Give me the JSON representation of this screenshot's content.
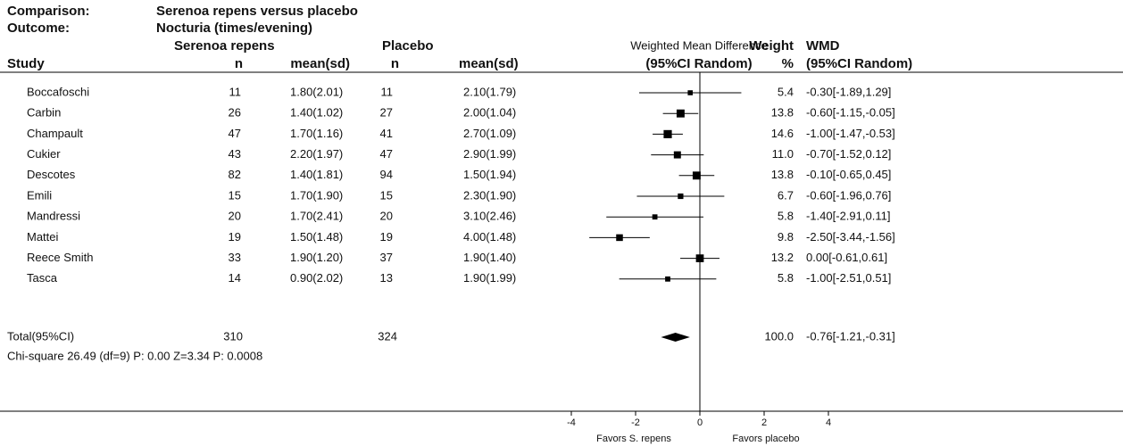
{
  "chart_data": {
    "type": "forest",
    "comparison_label": "Comparison:",
    "comparison": "Serenoa repens versus placebo",
    "outcome_label": "Outcome:",
    "outcome": "Nocturia (times/evening)",
    "group_1": "Serenoa repens",
    "group_2": "Placebo",
    "plot_header": "Weighted Mean Difference",
    "plot_subheader": "(95%CI Random)",
    "weight_header": "Weight",
    "weight_unit": "%",
    "wmd_header": "WMD",
    "wmd_subheader": "(95%CI Random)",
    "study_header": "Study",
    "n_header_1": "n",
    "mean_header_1": "mean(sd)",
    "n_header_2": "n",
    "mean_header_2": "mean(sd)",
    "studies": [
      {
        "name": "Boccafoschi",
        "n1": 11,
        "mean1": "1.80(2.01)",
        "n2": 11,
        "mean2": "2.10(1.79)",
        "weight": 5.4,
        "wmd": -0.3,
        "ci_low": -1.89,
        "ci_high": 1.29,
        "wmd_label": "-0.30[-1.89,1.29]"
      },
      {
        "name": "Carbin",
        "n1": 26,
        "mean1": "1.40(1.02)",
        "n2": 27,
        "mean2": "2.00(1.04)",
        "weight": 13.8,
        "wmd": -0.6,
        "ci_low": -1.15,
        "ci_high": -0.05,
        "wmd_label": "-0.60[-1.15,-0.05]"
      },
      {
        "name": "Champault",
        "n1": 47,
        "mean1": "1.70(1.16)",
        "n2": 41,
        "mean2": "2.70(1.09)",
        "weight": 14.6,
        "wmd": -1.0,
        "ci_low": -1.47,
        "ci_high": -0.53,
        "wmd_label": "-1.00[-1.47,-0.53]"
      },
      {
        "name": "Cukier",
        "n1": 43,
        "mean1": "2.20(1.97)",
        "n2": 47,
        "mean2": "2.90(1.99)",
        "weight": 11,
        "wmd": -0.7,
        "ci_low": -1.52,
        "ci_high": 0.12,
        "wmd_label": "-0.70[-1.52,0.12]",
        "weight_label": "11.0"
      },
      {
        "name": "Descotes",
        "n1": 82,
        "mean1": "1.40(1.81)",
        "n2": 94,
        "mean2": "1.50(1.94)",
        "weight": 13.8,
        "wmd": -0.1,
        "ci_low": -0.65,
        "ci_high": 0.45,
        "wmd_label": "-0.10[-0.65,0.45]"
      },
      {
        "name": "Emili",
        "n1": 15,
        "mean1": "1.70(1.90)",
        "n2": 15,
        "mean2": "2.30(1.90)",
        "weight": 6.7,
        "wmd": -0.6,
        "ci_low": -1.96,
        "ci_high": 0.76,
        "wmd_label": "-0.60[-1.96,0.76]"
      },
      {
        "name": "Mandressi",
        "n1": 20,
        "mean1": "1.70(2.41)",
        "n2": 20,
        "mean2": "3.10(2.46)",
        "weight": 5.8,
        "wmd": -1.4,
        "ci_low": -2.91,
        "ci_high": 0.11,
        "wmd_label": "-1.40[-2.91,0.11]"
      },
      {
        "name": "Mattei",
        "n1": 19,
        "mean1": "1.50(1.48)",
        "n2": 19,
        "mean2": "4.00(1.48)",
        "weight": 9.8,
        "wmd": -2.5,
        "ci_low": -3.44,
        "ci_high": -1.56,
        "wmd_label": "-2.50[-3.44,-1.56]"
      },
      {
        "name": "Reece Smith",
        "n1": 33,
        "mean1": "1.90(1.20)",
        "n2": 37,
        "mean2": "1.90(1.40)",
        "weight": 13.2,
        "wmd": 0,
        "ci_low": -0.61,
        "ci_high": 0.61,
        "wmd_label": "0.00[-0.61,0.61]"
      },
      {
        "name": "Tasca",
        "n1": 14,
        "mean1": "0.90(2.02)",
        "n2": 13,
        "mean2": "1.90(1.99)",
        "weight": 5.8,
        "wmd": -1.0,
        "ci_low": -2.51,
        "ci_high": 0.51,
        "wmd_label": "-1.00[-2.51,0.51]"
      }
    ],
    "total": {
      "name": "Total(95%CI)",
      "n1": 310,
      "n2": 324,
      "weight": {
        "value": 100,
        "label": "100.0"
      },
      "wmd": -0.76,
      "ci_low": -1.21,
      "ci_high": -0.31,
      "wmd_label": "-0.76[-1.21,-0.31]"
    },
    "heterogeneity": "Chi-square 26.49 (df=9) P: 0.00  Z=3.34 P: 0.0008",
    "xlim": [
      -4,
      4
    ],
    "xticks": [
      -4,
      -2,
      0,
      2,
      4
    ],
    "x_label_left": "Favors S. repens",
    "x_label_right": "Favors placebo"
  }
}
